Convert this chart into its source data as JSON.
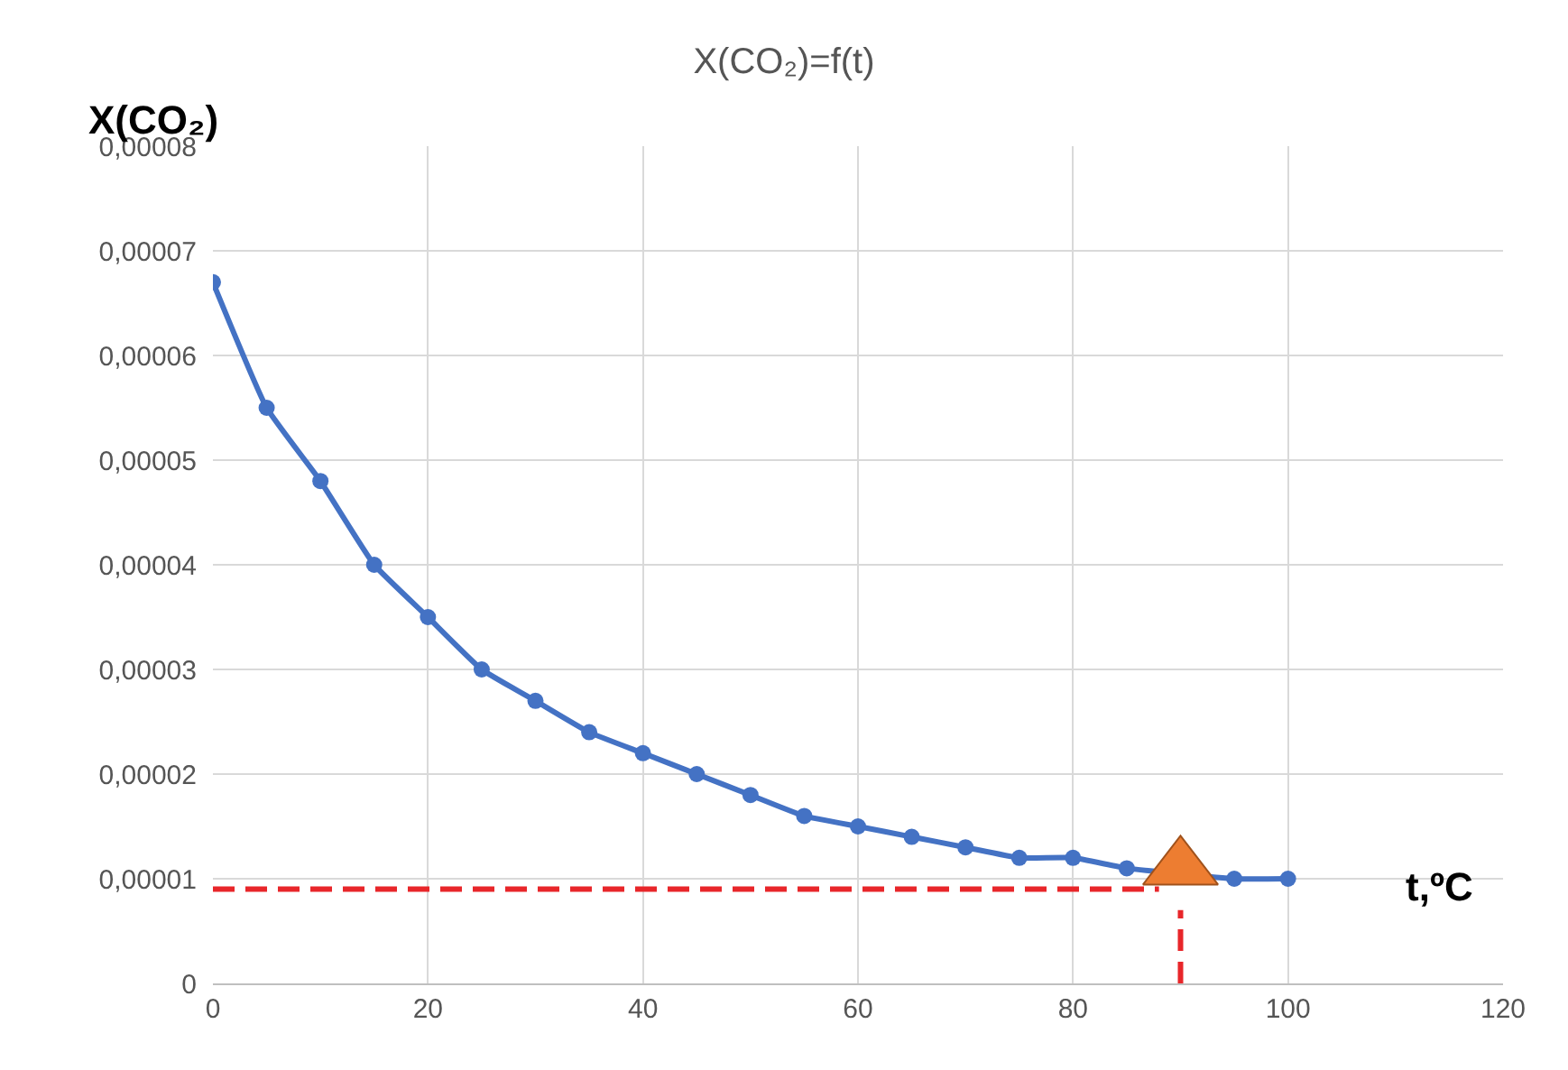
{
  "chart_data": {
    "type": "line",
    "title": "X(CO₂)=f(t)",
    "xlabel": "t,ºC",
    "ylabel": "X(CO₂)",
    "x": [
      0,
      5,
      10,
      15,
      20,
      25,
      30,
      35,
      40,
      45,
      50,
      55,
      60,
      65,
      70,
      75,
      80,
      85,
      90,
      95,
      100
    ],
    "series": [
      {
        "color": "#4472c4",
        "marker": "circle",
        "line_style": "solid",
        "values": [
          6.7e-05,
          5.5e-05,
          4.8e-05,
          4e-05,
          3.5e-05,
          3e-05,
          2.7e-05,
          2.4e-05,
          2.2e-05,
          2e-05,
          1.8e-05,
          1.6e-05,
          1.5e-05,
          1.4e-05,
          1.3e-05,
          1.2e-05,
          1.2e-05,
          1.1e-05,
          null,
          1e-05,
          1e-05
        ]
      },
      {
        "type": "line",
        "color": "#e8262a",
        "marker": "none",
        "line_style": "dashed",
        "x": [
          0,
          88
        ],
        "values": [
          9e-06,
          9e-06
        ]
      },
      {
        "type": "line",
        "color": "#e8262a",
        "marker": "none",
        "line_style": "dashed",
        "x": [
          90,
          90
        ],
        "values": [
          0,
          7e-06
        ]
      },
      {
        "type": "scatter",
        "color": "#ed7d31",
        "marker": "triangle",
        "x": [
          90
        ],
        "values": [
          1.1e-05
        ]
      }
    ],
    "xlim": [
      0,
      120
    ],
    "xticks": [
      0,
      20,
      40,
      60,
      80,
      100,
      120
    ],
    "ylim": [
      0,
      8e-05
    ],
    "yticks": [
      0,
      {
        "value": 1e-05,
        "label": "0,00001"
      },
      {
        "value": 2e-05,
        "label": "0,00002"
      },
      {
        "value": 3e-05,
        "label": "0,00003"
      },
      {
        "value": 4e-05,
        "label": "0,00004"
      },
      {
        "value": 5e-05,
        "label": "0,00005"
      },
      {
        "value": 6e-05,
        "label": "0,00006"
      },
      {
        "value": 7e-05,
        "label": "0,00007"
      },
      {
        "value": 8e-05,
        "label": "0,00008"
      }
    ],
    "grid": true
  }
}
